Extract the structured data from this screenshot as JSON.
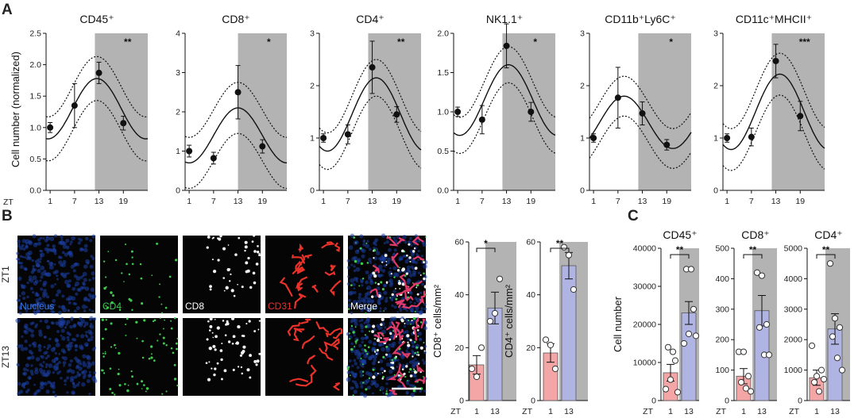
{
  "panel_labels": [
    "A",
    "B",
    "C"
  ],
  "chart_data": [
    {
      "type": "line",
      "panel": "A",
      "title": "CD45⁺",
      "ylabel": "Cell number (normalized)",
      "xlabel": "ZT",
      "x_ticks": [
        1,
        7,
        13,
        19
      ],
      "ylim": [
        0,
        2.5
      ],
      "y_ticks": [
        "0.0",
        "0.5",
        "1.0",
        "1.5",
        "2.0",
        "2.5"
      ],
      "dark_phase": [
        12,
        25
      ],
      "significance": "**",
      "points": [
        {
          "x": 1,
          "y": 1.0,
          "err": 0.08
        },
        {
          "x": 7,
          "y": 1.35,
          "err": 0.35
        },
        {
          "x": 13,
          "y": 1.87,
          "err": 0.17
        },
        {
          "x": 19,
          "y": 1.07,
          "err": 0.11
        }
      ],
      "fit": {
        "mesor": 1.3,
        "amplitude": 0.48,
        "peak": 12.5
      },
      "band": {
        "mesor": 1.3,
        "amplitude": 0.48,
        "peak": 12.5,
        "width": 0.35
      }
    },
    {
      "type": "line",
      "panel": "A",
      "title": "CD8⁺",
      "x_ticks": [
        1,
        7,
        13,
        19
      ],
      "ylim": [
        0,
        4
      ],
      "y_ticks": [
        "0",
        "1",
        "2",
        "3",
        "4"
      ],
      "dark_phase": [
        13,
        25
      ],
      "significance": "*",
      "points": [
        {
          "x": 1,
          "y": 1.0,
          "err": 0.15
        },
        {
          "x": 7,
          "y": 0.82,
          "err": 0.15
        },
        {
          "x": 13,
          "y": 2.5,
          "err": 0.68
        },
        {
          "x": 19,
          "y": 1.12,
          "err": 0.17
        }
      ],
      "fit": {
        "mesor": 1.4,
        "amplitude": 0.7,
        "peak": 13
      },
      "band": {
        "mesor": 1.4,
        "amplitude": 0.7,
        "peak": 13,
        "width": 0.65
      }
    },
    {
      "type": "line",
      "panel": "A",
      "title": "CD4⁺",
      "x_ticks": [
        1,
        7,
        13,
        19
      ],
      "ylim": [
        0,
        3
      ],
      "y_ticks": [
        "0",
        "1",
        "2",
        "3"
      ],
      "dark_phase": [
        12,
        25
      ],
      "significance": "**",
      "points": [
        {
          "x": 1,
          "y": 1.0,
          "err": 0.08
        },
        {
          "x": 7,
          "y": 1.07,
          "err": 0.18
        },
        {
          "x": 13,
          "y": 2.35,
          "err": 0.5
        },
        {
          "x": 19,
          "y": 1.45,
          "err": 0.15
        }
      ],
      "fit": {
        "mesor": 1.45,
        "amplitude": 0.7,
        "peak": 14
      },
      "band": {
        "mesor": 1.45,
        "amplitude": 0.7,
        "peak": 14,
        "width": 0.35
      }
    },
    {
      "type": "line",
      "panel": "A",
      "title": "NK1.1⁺",
      "x_ticks": [
        1,
        7,
        13,
        19
      ],
      "ylim": [
        0,
        2.0
      ],
      "y_ticks": [
        "0.0",
        "0.5",
        "1.0",
        "1.5",
        "2.0"
      ],
      "dark_phase": [
        12,
        25
      ],
      "significance": "*",
      "points": [
        {
          "x": 1,
          "y": 1.0,
          "err": 0.06
        },
        {
          "x": 7,
          "y": 0.9,
          "err": 0.18
        },
        {
          "x": 13,
          "y": 1.84,
          "err": 0.28
        },
        {
          "x": 19,
          "y": 1.0,
          "err": 0.12
        }
      ],
      "fit": {
        "mesor": 1.15,
        "amplitude": 0.45,
        "peak": 13.5
      },
      "band": {
        "mesor": 1.15,
        "amplitude": 0.45,
        "peak": 13.5,
        "width": 0.23
      }
    },
    {
      "type": "line",
      "panel": "A",
      "title": "CD11b⁺Ly6C⁺",
      "x_ticks": [
        1,
        7,
        13,
        19
      ],
      "ylim": [
        0,
        3
      ],
      "y_ticks": [
        "0",
        "1",
        "2",
        "3"
      ],
      "dark_phase": [
        12,
        25
      ],
      "significance": "*",
      "points": [
        {
          "x": 1,
          "y": 1.0,
          "err": 0.08
        },
        {
          "x": 7,
          "y": 1.77,
          "err": 0.58
        },
        {
          "x": 13,
          "y": 1.47,
          "err": 0.22
        },
        {
          "x": 19,
          "y": 0.87,
          "err": 0.1
        }
      ],
      "fit": {
        "mesor": 1.3,
        "amplitude": 0.5,
        "peak": 8.5
      },
      "band": {
        "mesor": 1.3,
        "amplitude": 0.5,
        "peak": 8.5,
        "width": 0.38
      }
    },
    {
      "type": "line",
      "panel": "A",
      "title": "CD11c⁺MHCII⁺",
      "x_ticks": [
        1,
        7,
        13,
        19
      ],
      "ylim": [
        0,
        3
      ],
      "y_ticks": [
        "0",
        "1",
        "2",
        "3"
      ],
      "dark_phase": [
        12,
        25
      ],
      "significance": "***",
      "points": [
        {
          "x": 1,
          "y": 1.0,
          "err": 0.08
        },
        {
          "x": 7,
          "y": 1.02,
          "err": 0.17
        },
        {
          "x": 13,
          "y": 2.47,
          "err": 0.32
        },
        {
          "x": 19,
          "y": 1.42,
          "err": 0.28
        }
      ],
      "fit": {
        "mesor": 1.5,
        "amplitude": 0.72,
        "peak": 14
      },
      "band": {
        "mesor": 1.5,
        "amplitude": 0.72,
        "peak": 14,
        "width": 0.4
      }
    },
    {
      "type": "bar",
      "panel": "B",
      "ylabel": "CD8⁺ cells/mm²",
      "categories": [
        "1",
        "13"
      ],
      "xlabel": "ZT",
      "values": [
        13.5,
        35
      ],
      "errors": [
        3.5,
        6
      ],
      "ylim": [
        0,
        60
      ],
      "y_ticks": [
        "0",
        "20",
        "40",
        "60"
      ],
      "significance": "*",
      "points": [
        [
          12,
          9,
          20
        ],
        [
          30,
          33,
          46
        ]
      ],
      "bar_colors": [
        "#f4a6a6",
        "#b0b4e2"
      ]
    },
    {
      "type": "bar",
      "panel": "B",
      "ylabel": "CD4⁺ cells/mm²",
      "categories": [
        "1",
        "13"
      ],
      "xlabel": "ZT",
      "values": [
        18,
        51
      ],
      "errors": [
        3.5,
        5
      ],
      "ylim": [
        0,
        60
      ],
      "y_ticks": [
        "0",
        "20",
        "40",
        "60"
      ],
      "significance": "**",
      "points": [
        [
          23,
          21,
          12
        ],
        [
          58,
          55,
          42
        ]
      ],
      "bar_colors": [
        "#f4a6a6",
        "#b0b4e2"
      ]
    },
    {
      "type": "bar",
      "panel": "C",
      "title": "CD45⁺",
      "ylabel": "Cell number",
      "categories": [
        "1",
        "13"
      ],
      "xlabel": "ZT",
      "values": [
        7300,
        23000
      ],
      "errors": [
        2200,
        3000
      ],
      "ylim": [
        0,
        40000
      ],
      "y_ticks": [
        "0",
        "10000",
        "20000",
        "30000",
        "40000"
      ],
      "significance": "**",
      "points": [
        [
          3000,
          5500,
          10500,
          14000,
          12800,
          2200
        ],
        [
          15000,
          17500,
          24000,
          34500,
          34500,
          17000
        ]
      ],
      "bar_colors": [
        "#f4a6a6",
        "#b0b4e2"
      ]
    },
    {
      "type": "bar",
      "panel": "C",
      "title": "CD8⁺",
      "categories": [
        "1",
        "13"
      ],
      "xlabel": "ZT",
      "values": [
        80,
        295
      ],
      "errors": [
        25,
        50
      ],
      "ylim": [
        0,
        500
      ],
      "y_ticks": [
        "0",
        "100",
        "200",
        "300",
        "400",
        "500"
      ],
      "significance": "**",
      "points": [
        [
          160,
          160,
          80,
          60,
          40,
          30
        ],
        [
          420,
          410,
          250,
          240,
          150,
          150
        ]
      ],
      "bar_colors": [
        "#f4a6a6",
        "#b0b4e2"
      ]
    },
    {
      "type": "bar",
      "panel": "C",
      "title": "CD4⁺",
      "categories": [
        "1",
        "13"
      ],
      "xlabel": "ZT",
      "values": [
        750,
        2350
      ],
      "errors": [
        250,
        500
      ],
      "ylim": [
        0,
        5000
      ],
      "y_ticks": [
        "0",
        "1000",
        "2000",
        "3000",
        "4000",
        "5000"
      ],
      "significance": "**",
      "points": [
        [
          1800,
          800,
          1000,
          600,
          300,
          700
        ],
        [
          4500,
          2700,
          2400,
          2100,
          1400,
          1000
        ]
      ],
      "bar_colors": [
        "#f4a6a6",
        "#b0b4e2"
      ]
    }
  ],
  "microscopy": {
    "rows": [
      "ZT1",
      "ZT13"
    ],
    "channels": [
      {
        "label": "Nucleus",
        "color": "#3b7be8"
      },
      {
        "label": "CD4",
        "color": "#3fc94f"
      },
      {
        "label": "CD8",
        "color": "#ffffff"
      },
      {
        "label": "CD31",
        "color": "#e8322a"
      },
      {
        "label": "Merge",
        "color": "#ffffff"
      }
    ]
  }
}
